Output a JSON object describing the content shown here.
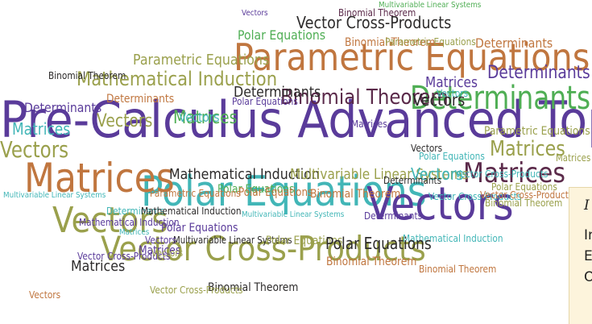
{
  "colors": {
    "purple": "#5a3b9a",
    "brown": "#c0763f",
    "green": "#4fae54",
    "teal": "#42b6b7",
    "dark_purple": "#5b2a4a",
    "olive": "#9aa04c",
    "dark": "#2d2b2b",
    "panel_bg": "#fdf4dc"
  },
  "words": [
    {
      "text": "Pre-Calculus Advanced Topics",
      "color": "purple"
    },
    {
      "text": "Parametric Equations",
      "color": "brown"
    },
    {
      "text": "Polar Equations",
      "color": "teal"
    },
    {
      "text": "Vectors",
      "color": "purple"
    },
    {
      "text": "Matrices",
      "color": "brown"
    },
    {
      "text": "Vector Cross-Products",
      "color": "olive"
    },
    {
      "text": "Vectors",
      "color": "olive"
    },
    {
      "text": "Determinants",
      "color": "green"
    },
    {
      "text": "Binomial Theorem",
      "color": "dark_purple"
    },
    {
      "text": "Mathematical Induction",
      "color": "olive"
    },
    {
      "text": "Matrices",
      "color": "dark_purple"
    },
    {
      "text": "Vectors",
      "color": "olive"
    },
    {
      "text": "Matrices",
      "color": "olive"
    },
    {
      "text": "Vector Cross-Products",
      "color": "dark"
    },
    {
      "text": "Polar Equations",
      "color": "green"
    },
    {
      "text": "Parametric Equations",
      "color": "olive"
    },
    {
      "text": "Mathematical Induction",
      "color": "dark"
    },
    {
      "text": "Multivariable Linear Systems",
      "color": "olive"
    },
    {
      "text": "Vectors",
      "color": "teal"
    },
    {
      "text": "Matrices",
      "color": "green"
    },
    {
      "text": "Determinants",
      "color": "dark"
    },
    {
      "text": "Vectors",
      "color": "dark"
    },
    {
      "text": "Determinants",
      "color": "purple"
    },
    {
      "text": "Binomial Theorem",
      "color": "brown"
    },
    {
      "text": "Determinants",
      "color": "brown"
    },
    {
      "text": "Polar Equations",
      "color": "purple"
    },
    {
      "text": "Matrices",
      "color": "teal"
    },
    {
      "text": "Vectors",
      "color": "teal"
    },
    {
      "text": "Vectors",
      "color": "dark"
    },
    {
      "text": "Polar Equations",
      "color": "green"
    },
    {
      "text": "Polar Equations",
      "color": "brown"
    },
    {
      "text": "Binomial Theorem",
      "color": "brown"
    },
    {
      "text": "Matrices",
      "color": "dark"
    },
    {
      "text": "Matrices",
      "color": "purple"
    },
    {
      "text": "Vector Cross-Products",
      "color": "purple"
    },
    {
      "text": "Binomial Theorem",
      "color": "dark"
    },
    {
      "text": "Parametric Equations",
      "color": "olive"
    },
    {
      "text": "Determinants",
      "color": "teal"
    },
    {
      "text": "Multivariable Linear Systems",
      "color": "dark"
    },
    {
      "text": "Vectors",
      "color": "olive"
    },
    {
      "text": "Mathematical Induction",
      "color": "purple"
    },
    {
      "text": "Vector Cross-Products",
      "color": "teal"
    },
    {
      "text": "Polar Equations",
      "color": "olive"
    },
    {
      "text": "Binomial Theorem",
      "color": "brown"
    },
    {
      "text": "Vectors",
      "color": "purple"
    },
    {
      "text": "Determinants",
      "color": "purple"
    },
    {
      "text": "Vector Cross-Products",
      "color": "brown"
    },
    {
      "text": "Mathematical Induction",
      "color": "teal"
    },
    {
      "text": "Polar Equations",
      "color": "dark"
    },
    {
      "text": "Vector Cross-Products",
      "color": "olive"
    },
    {
      "text": "Matrices",
      "color": "purple"
    },
    {
      "text": "Binomial Theorem",
      "color": "olive"
    },
    {
      "text": "Vectors",
      "color": "teal"
    },
    {
      "text": "Multivariable Linear Systems",
      "color": "teal"
    },
    {
      "text": "Vectors",
      "color": "olive"
    },
    {
      "text": "Determinants",
      "color": "brown"
    },
    {
      "text": "Matrices",
      "color": "olive"
    },
    {
      "text": "Matrices",
      "color": "purple"
    },
    {
      "text": "Parametric Equations",
      "color": "olive"
    },
    {
      "text": "Polar Equations",
      "color": "purple"
    },
    {
      "text": "Binomial Theorem",
      "color": "dark"
    },
    {
      "text": "Polar Equations",
      "color": "teal"
    },
    {
      "text": "Mathematical Induction",
      "color": "dark"
    },
    {
      "text": "Determinants",
      "color": "dark"
    },
    {
      "text": "Determinants",
      "color": "purple"
    },
    {
      "text": "Vector Cross-Products",
      "color": "teal"
    },
    {
      "text": "Multivariable Linear Systems",
      "color": "teal"
    },
    {
      "text": "Polar Equations",
      "color": "olive"
    },
    {
      "text": "Binomial Theorem",
      "color": "dark_purple"
    },
    {
      "text": "Matrices",
      "color": "teal"
    },
    {
      "text": "Binomial Theorem",
      "color": "brown"
    },
    {
      "text": "Multivariable Linear Systems",
      "color": "green"
    },
    {
      "text": "Vectors",
      "color": "brown"
    },
    {
      "text": "Vectors",
      "color": "purple"
    },
    {
      "text": "Parametric Equations",
      "color": "brown"
    }
  ],
  "side_panel": {
    "heading": "I",
    "line1": "In",
    "line2": "E",
    "line3": "O"
  }
}
